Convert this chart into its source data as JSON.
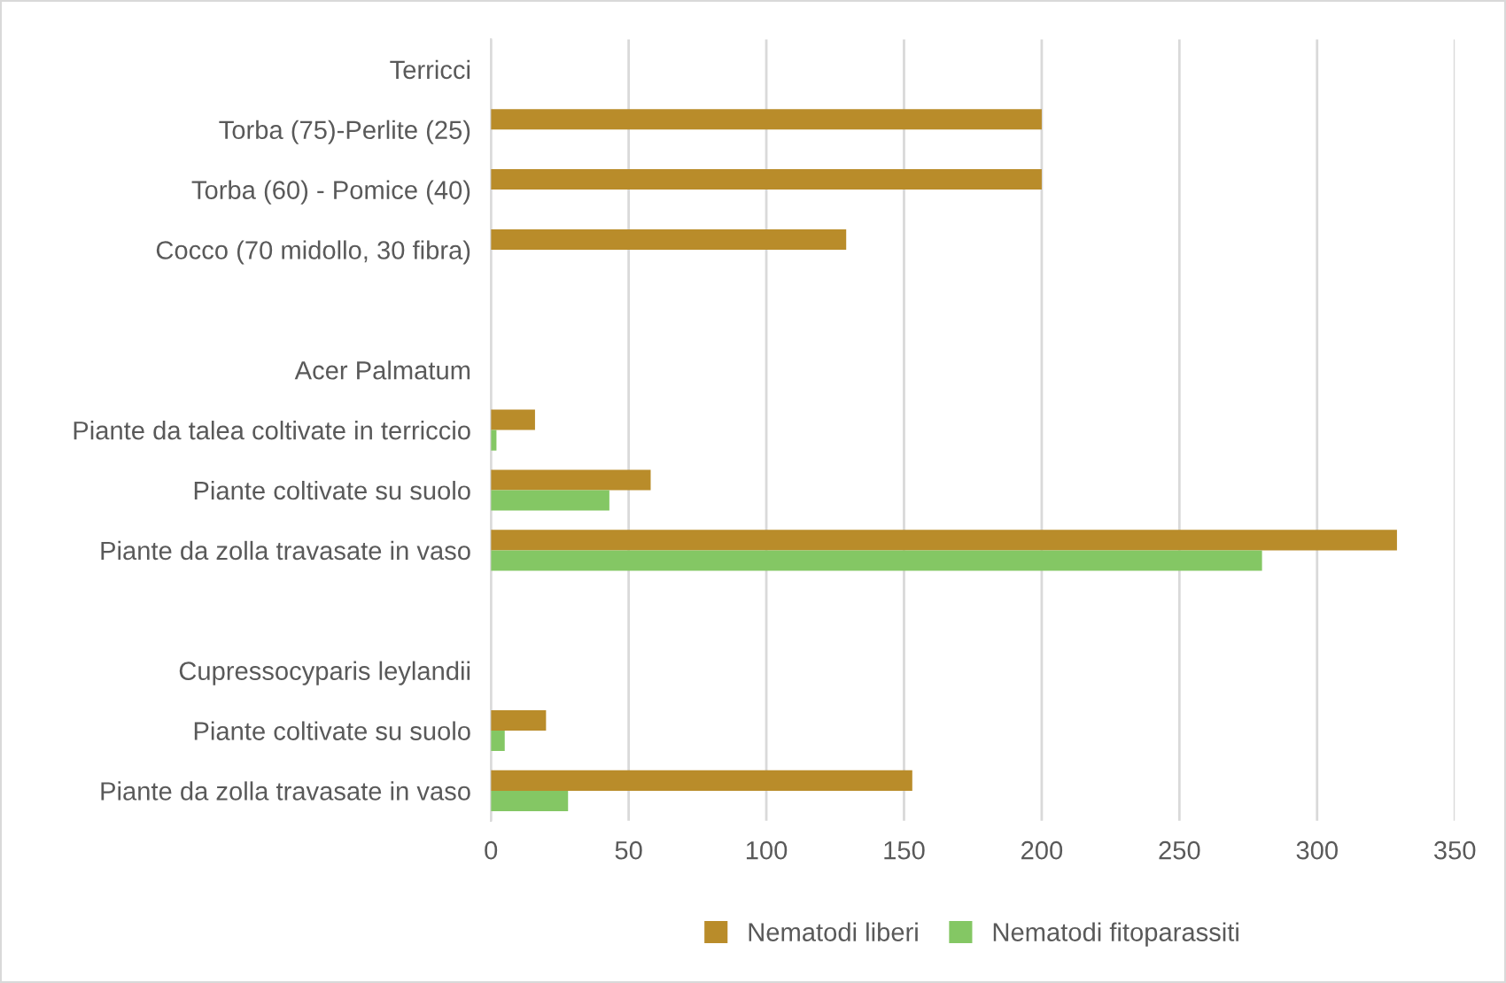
{
  "chart_data": {
    "type": "bar",
    "orientation": "horizontal",
    "categories": [
      "Terricci",
      "Torba (75)-Perlite (25)",
      "Torba (60) - Pomice (40)",
      "Cocco (70 midollo, 30 fibra)",
      null,
      "Acer Palmatum",
      "Piante da talea coltivate in terriccio",
      "Piante coltivate su suolo",
      "Piante da zolla travasate in vaso",
      null,
      "Cupressocyparis leylandii",
      "Piante coltivate su suolo",
      "Piante da zolla travasate in vaso"
    ],
    "series": [
      {
        "name": "Nematodi liberi",
        "color": "#b98c2a",
        "values": [
          null,
          200,
          200,
          129,
          null,
          null,
          16,
          58,
          329,
          null,
          null,
          20,
          153
        ]
      },
      {
        "name": "Nematodi fitoparassiti",
        "color": "#84c764",
        "values": [
          null,
          null,
          null,
          null,
          null,
          null,
          2,
          43,
          280,
          null,
          null,
          5,
          28
        ]
      }
    ],
    "xlim": [
      0,
      350
    ],
    "xticks": [
      0,
      50,
      100,
      150,
      200,
      250,
      300,
      350
    ],
    "grid": "x",
    "legend": "bottom"
  }
}
